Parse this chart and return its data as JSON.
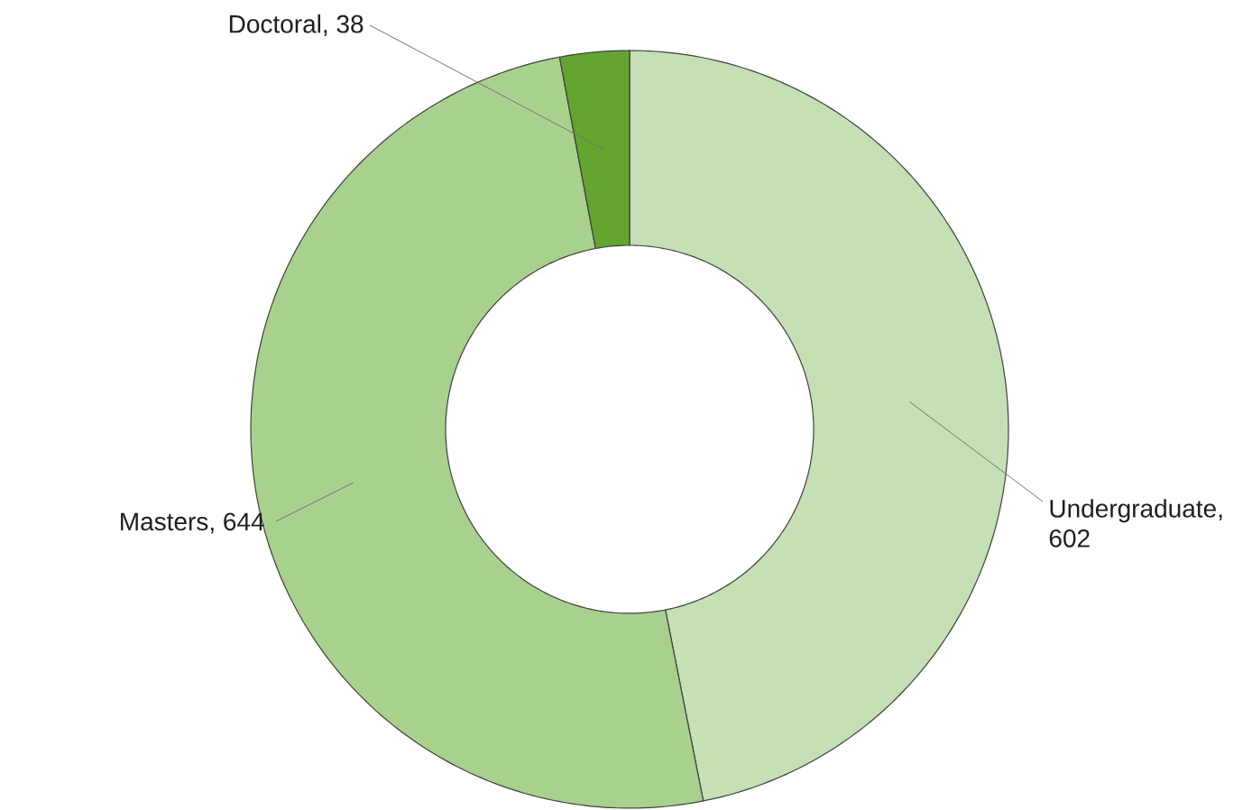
{
  "chart_data": {
    "type": "donut",
    "categories": [
      "Undergraduate",
      "Masters",
      "Doctoral"
    ],
    "values": [
      602,
      644,
      38
    ],
    "colors": [
      "#c5e0b4",
      "#a9d18e",
      "#63a52e"
    ],
    "value_labels": [
      ", 602",
      ", 644",
      ", 38"
    ]
  }
}
